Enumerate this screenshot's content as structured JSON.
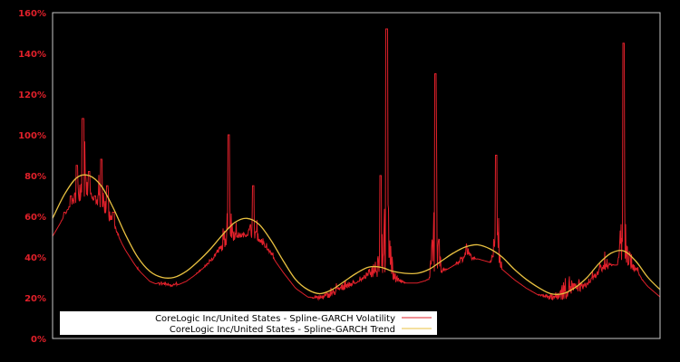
{
  "chart_data": {
    "type": "line",
    "title": "",
    "xlabel": "",
    "ylabel": "",
    "ylim": [
      0,
      160
    ],
    "y_ticks": [
      "0%",
      "20%",
      "40%",
      "60%",
      "80%",
      "100%",
      "120%",
      "140%",
      "160%"
    ],
    "grid": false,
    "legend_position": "lower-left",
    "background": "#000000",
    "axis_color": "#c8c8c8",
    "tick_label_color": "#e0202a",
    "series": [
      {
        "name": "CoreLogic Inc/United States - Spline-GARCH Volatility",
        "color": "#e0202a",
        "x": [
          0,
          0.01,
          0.02,
          0.03,
          0.04,
          0.05,
          0.06,
          0.07,
          0.08,
          0.09,
          0.1,
          0.11,
          0.12,
          0.13,
          0.14,
          0.15,
          0.16,
          0.17,
          0.18,
          0.19,
          0.2,
          0.21,
          0.22,
          0.23,
          0.24,
          0.25,
          0.26,
          0.27,
          0.28,
          0.29,
          0.3,
          0.31,
          0.32,
          0.33,
          0.34,
          0.35,
          0.36,
          0.37,
          0.38,
          0.39,
          0.4,
          0.41,
          0.42,
          0.43,
          0.44,
          0.45,
          0.46,
          0.47,
          0.48,
          0.49,
          0.5,
          0.51,
          0.52,
          0.53,
          0.54,
          0.55,
          0.56,
          0.57,
          0.58,
          0.59,
          0.6,
          0.61,
          0.62,
          0.63,
          0.64,
          0.65,
          0.66,
          0.67,
          0.68,
          0.69,
          0.7,
          0.71,
          0.72,
          0.73,
          0.74,
          0.75,
          0.76,
          0.77,
          0.78,
          0.79,
          0.8,
          0.81,
          0.82,
          0.83,
          0.84,
          0.85,
          0.86,
          0.87,
          0.88,
          0.89,
          0.9,
          0.91,
          0.92,
          0.93,
          0.94,
          0.95,
          0.96,
          0.97,
          0.98,
          0.99,
          1.0
        ],
        "values": [
          48,
          55,
          62,
          70,
          85,
          108,
          82,
          70,
          88,
          75,
          62,
          50,
          42,
          38,
          35,
          30,
          28,
          27,
          32,
          30,
          29,
          26,
          28,
          30,
          33,
          36,
          40,
          48,
          52,
          100,
          58,
          55,
          54,
          75,
          52,
          48,
          45,
          35,
          30,
          27,
          25,
          22,
          20,
          22,
          24,
          26,
          28,
          30,
          32,
          30,
          28,
          32,
          38,
          50,
          80,
          152,
          45,
          32,
          28,
          26,
          25,
          28,
          30,
          130,
          38,
          34,
          36,
          40,
          60,
          42,
          38,
          36,
          34,
          90,
          32,
          28,
          26,
          24,
          22,
          20,
          22,
          24,
          26,
          28,
          40,
          46,
          35,
          32,
          30,
          34,
          38,
          44,
          38,
          35,
          145,
          55,
          40,
          30,
          25,
          20,
          16
        ]
      },
      {
        "name": "CoreLogic Inc/United States - Spline-GARCH Trend",
        "color": "#e8c040",
        "x": [
          0,
          0.02,
          0.04,
          0.06,
          0.08,
          0.1,
          0.12,
          0.14,
          0.16,
          0.18,
          0.2,
          0.22,
          0.24,
          0.26,
          0.28,
          0.3,
          0.32,
          0.34,
          0.36,
          0.38,
          0.4,
          0.42,
          0.44,
          0.46,
          0.48,
          0.5,
          0.52,
          0.54,
          0.56,
          0.58,
          0.6,
          0.62,
          0.64,
          0.66,
          0.68,
          0.7,
          0.72,
          0.74,
          0.76,
          0.78,
          0.8,
          0.82,
          0.84,
          0.86,
          0.88,
          0.9,
          0.92,
          0.94,
          0.96,
          0.98,
          1.0
        ],
        "values": [
          59,
          71,
          79,
          80,
          75,
          64,
          51,
          40,
          33,
          30,
          30,
          33,
          38,
          44,
          51,
          57,
          59,
          56,
          48,
          38,
          29,
          24,
          22,
          24,
          28,
          32,
          35,
          35,
          33,
          32,
          32,
          34,
          38,
          42,
          45,
          46,
          44,
          40,
          34,
          29,
          25,
          22,
          22,
          25,
          30,
          37,
          42,
          43,
          38,
          30,
          24
        ]
      }
    ]
  },
  "legend": {
    "items": [
      {
        "label": "CoreLogic Inc/United States - Spline-GARCH Volatility",
        "color": "#e0202a"
      },
      {
        "label": "CoreLogic Inc/United States - Spline-GARCH Trend",
        "color": "#e8c040"
      }
    ]
  }
}
